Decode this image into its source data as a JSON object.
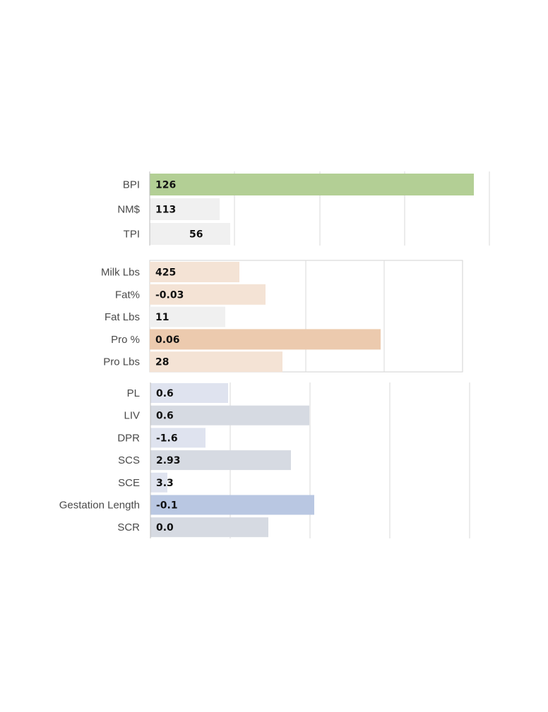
{
  "chart_data": [
    {
      "type": "bar",
      "orientation": "horizontal",
      "grid": true,
      "frame": false,
      "categories": [
        "BPI",
        "NM$",
        "TPI"
      ],
      "values": [
        126,
        113,
        56
      ],
      "value_labels": [
        "126",
        "113",
        "56"
      ],
      "colors": [
        "#b3cf95",
        "#f0f0f0",
        "#f0f0f0"
      ]
    },
    {
      "type": "bar",
      "orientation": "horizontal",
      "grid": true,
      "frame": true,
      "categories": [
        "Milk Lbs",
        "Fat%",
        "Fat Lbs",
        "Pro %",
        "Pro Lbs"
      ],
      "values": [
        425,
        -0.03,
        11,
        0.06,
        28
      ],
      "value_labels": [
        "425",
        "-0.03",
        "11",
        "0.06",
        "28"
      ],
      "colors": [
        "#f4e3d5",
        "#f4e3d5",
        "#f0f0f0",
        "#eccaae",
        "#f4e3d5"
      ]
    },
    {
      "type": "bar",
      "orientation": "horizontal",
      "grid": true,
      "frame": false,
      "categories": [
        "PL",
        "LIV",
        "DPR",
        "SCS",
        "SCE",
        "Gestation Length",
        "SCR"
      ],
      "values": [
        0.6,
        0.6,
        -1.6,
        2.93,
        3.3,
        -0.1,
        0.0
      ],
      "value_labels": [
        "0.6",
        "0.6",
        "-1.6",
        "2.93",
        "3.3",
        "-0.1",
        "0.0"
      ],
      "colors": [
        "#dfe3ef",
        "#d6dae2",
        "#dfe3ef",
        "#d6dae2",
        "#dfe3ef",
        "#b9c7e2",
        "#d6dae2"
      ]
    }
  ]
}
